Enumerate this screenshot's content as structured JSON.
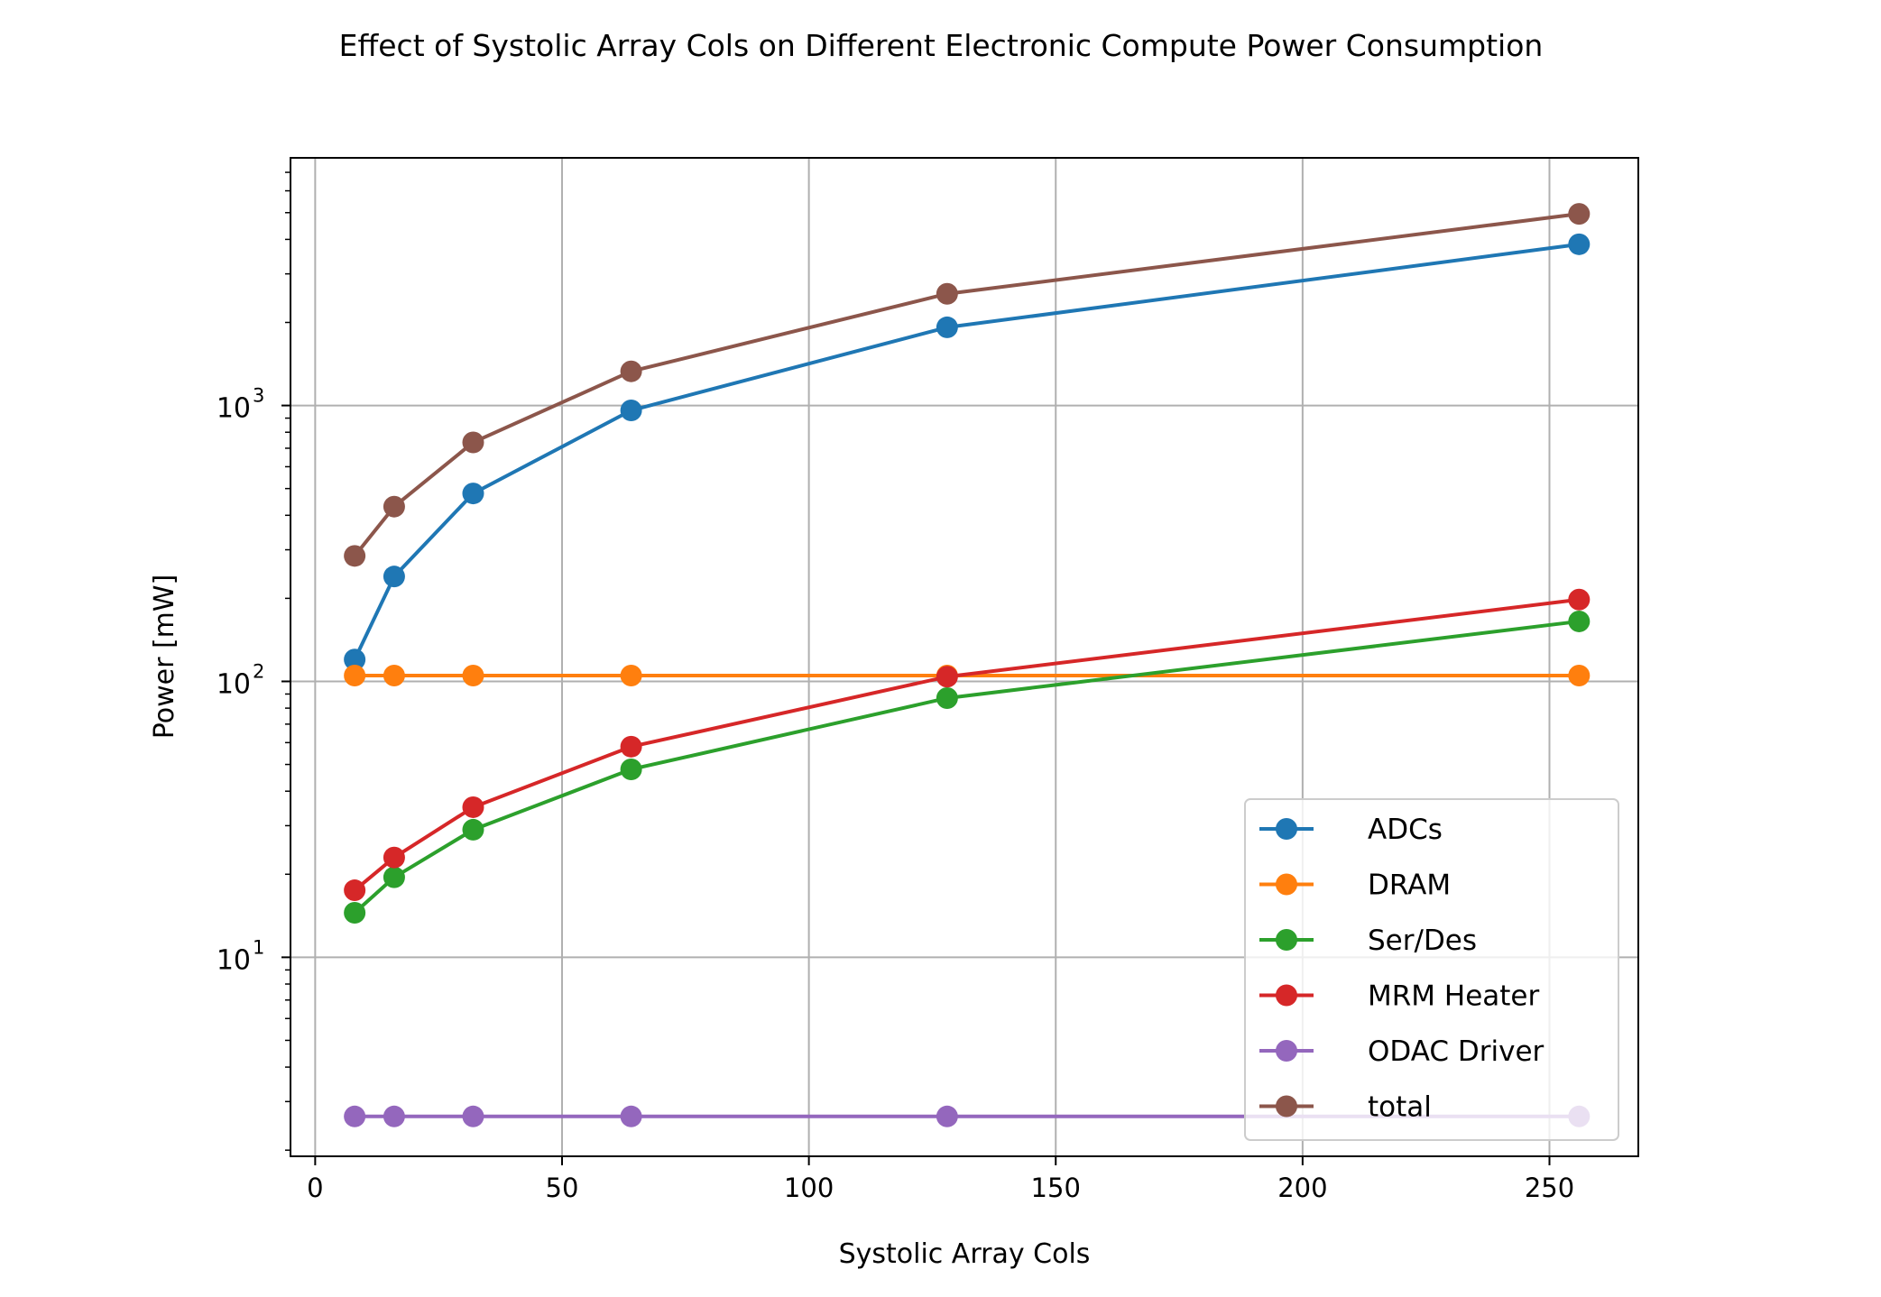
{
  "chart_data": {
    "type": "line",
    "title": "Effect of Systolic Array Cols on Different Electronic Compute Power Consumption",
    "xlabel": "Systolic Array Cols",
    "ylabel": "Power [mW]",
    "xlim": [
      -5,
      268
    ],
    "ylim": [
      1.9,
      7900
    ],
    "yscale": "log",
    "grid": true,
    "legend_position": "lower right",
    "x_ticks": [
      0,
      50,
      100,
      150,
      200,
      250
    ],
    "x_tick_labels": [
      "0",
      "50",
      "100",
      "150",
      "200",
      "250"
    ],
    "y_major_ticks": [
      10,
      100,
      1000
    ],
    "y_tick_labels": [
      {
        "base": "10",
        "exp": "1"
      },
      {
        "base": "10",
        "exp": "2"
      },
      {
        "base": "10",
        "exp": "3"
      }
    ],
    "x": [
      8,
      16,
      32,
      64,
      128,
      256
    ],
    "series": [
      {
        "name": "ADCs",
        "color": "#1f77b4",
        "values": [
          120,
          240,
          480,
          960,
          1920,
          3840
        ]
      },
      {
        "name": "DRAM",
        "color": "#ff7f0e",
        "values": [
          105,
          105,
          105,
          105,
          105,
          105
        ]
      },
      {
        "name": "Ser/Des",
        "color": "#2ca02c",
        "values": [
          14.5,
          19.5,
          29,
          48,
          87,
          165
        ]
      },
      {
        "name": "MRM Heater",
        "color": "#d62728",
        "values": [
          17.5,
          23,
          35,
          58,
          104,
          198
        ]
      },
      {
        "name": "ODAC Driver",
        "color": "#9467bd",
        "values": [
          2.65,
          2.65,
          2.65,
          2.65,
          2.65,
          2.65
        ]
      },
      {
        "name": "total",
        "color": "#8c564b",
        "values": [
          285,
          430,
          735,
          1330,
          2540,
          4950
        ]
      }
    ]
  }
}
